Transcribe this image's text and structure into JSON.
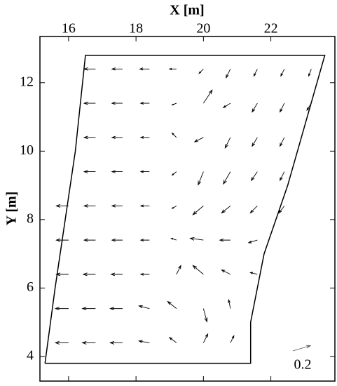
{
  "chart_data": {
    "type": "quiver",
    "xlabel": "X [m]",
    "ylabel": "Y [m]",
    "xlim": [
      15.15,
      23.9
    ],
    "ylim": [
      3.28,
      13.35
    ],
    "xticks": [
      16,
      18,
      20,
      22
    ],
    "yticks": [
      4,
      6,
      8,
      10,
      12
    ],
    "scale_key": 0.2,
    "color": "#000000",
    "boundary_x": [
      15.3,
      15.6,
      15.9,
      16.2,
      16.5,
      23.6,
      22.5,
      21.8,
      21.4,
      21.4,
      15.3
    ],
    "boundary_y": [
      3.8,
      6,
      8,
      10,
      12.8,
      12.8,
      9,
      7,
      5,
      3.8,
      3.8
    ],
    "rows": [
      {
        "y": 4.4,
        "x": [
          16,
          16.8,
          17.6,
          18.4,
          19.2,
          20,
          20.8
        ],
        "u": [
          -0.15,
          -0.15,
          -0.14,
          -0.12,
          -0.08,
          0.05,
          0.04
        ],
        "v": [
          0,
          0,
          0,
          0.02,
          0.06,
          0.1,
          0.08
        ]
      },
      {
        "y": 5.4,
        "x": [
          16,
          16.8,
          17.6,
          18.4,
          19.2,
          20,
          20.8
        ],
        "u": [
          -0.15,
          -0.15,
          -0.14,
          -0.12,
          -0.1,
          0.04,
          -0.02
        ],
        "v": [
          0,
          0,
          0,
          0.03,
          0.08,
          -0.15,
          0.1
        ]
      },
      {
        "y": 6.4,
        "x": [
          16,
          16.8,
          17.6,
          18.4,
          19.2,
          20,
          20.8,
          21.6
        ],
        "u": [
          -0.14,
          -0.14,
          -0.13,
          -0.1,
          0.05,
          -0.12,
          -0.1,
          -0.08
        ],
        "v": [
          0,
          0,
          0,
          0,
          0.1,
          0.1,
          0.05,
          0.02
        ]
      },
      {
        "y": 7.4,
        "x": [
          16,
          16.8,
          17.6,
          18.4,
          19.2,
          20,
          20.8,
          21.6
        ],
        "u": [
          -0.14,
          -0.13,
          -0.12,
          -0.1,
          -0.06,
          -0.15,
          -0.12,
          -0.1
        ],
        "v": [
          0,
          0,
          0,
          0,
          0.02,
          0.02,
          0,
          -0.03
        ]
      },
      {
        "y": 8.4,
        "x": [
          16,
          16.8,
          17.6,
          18.4,
          19.2,
          20,
          20.8,
          21.6,
          22.4
        ],
        "u": [
          -0.14,
          -0.13,
          -0.12,
          -0.1,
          -0.05,
          -0.12,
          -0.1,
          -0.08,
          -0.06
        ],
        "v": [
          0,
          0,
          0,
          0,
          -0.03,
          -0.1,
          -0.08,
          -0.08,
          -0.08
        ]
      },
      {
        "y": 9.4,
        "x": [
          16.8,
          17.6,
          18.4,
          19.2,
          20,
          20.8,
          21.6,
          22.4
        ],
        "u": [
          -0.13,
          -0.12,
          -0.1,
          -0.05,
          -0.06,
          -0.08,
          -0.07,
          -0.05
        ],
        "v": [
          0,
          0,
          0,
          -0.04,
          -0.15,
          -0.14,
          -0.1,
          -0.1
        ]
      },
      {
        "y": 10.4,
        "x": [
          16.8,
          17.6,
          18.4,
          19.2,
          20,
          20.8,
          21.6,
          22.4
        ],
        "u": [
          -0.13,
          -0.12,
          -0.1,
          -0.05,
          -0.1,
          -0.06,
          -0.06,
          -0.05
        ],
        "v": [
          0,
          0,
          0,
          0.05,
          -0.05,
          -0.12,
          -0.1,
          -0.1
        ]
      },
      {
        "y": 11.4,
        "x": [
          16.8,
          17.6,
          18.4,
          19.2,
          20,
          20.8,
          21.6,
          22.4,
          23.2
        ],
        "u": [
          -0.13,
          -0.12,
          -0.1,
          -0.05,
          0.1,
          -0.08,
          -0.06,
          -0.05,
          -0.05
        ],
        "v": [
          0,
          0,
          0,
          -0.02,
          0.15,
          -0.05,
          -0.1,
          -0.1,
          -0.08
        ]
      },
      {
        "y": 12.4,
        "x": [
          16.8,
          17.6,
          18.4,
          19.2,
          20,
          20.8,
          21.6,
          22.4,
          23.2
        ],
        "u": [
          -0.13,
          -0.12,
          -0.11,
          -0.08,
          -0.05,
          -0.05,
          -0.04,
          -0.04,
          -0.03
        ],
        "v": [
          0,
          0,
          0,
          0,
          -0.05,
          -0.1,
          -0.08,
          -0.08,
          -0.08
        ]
      }
    ]
  }
}
